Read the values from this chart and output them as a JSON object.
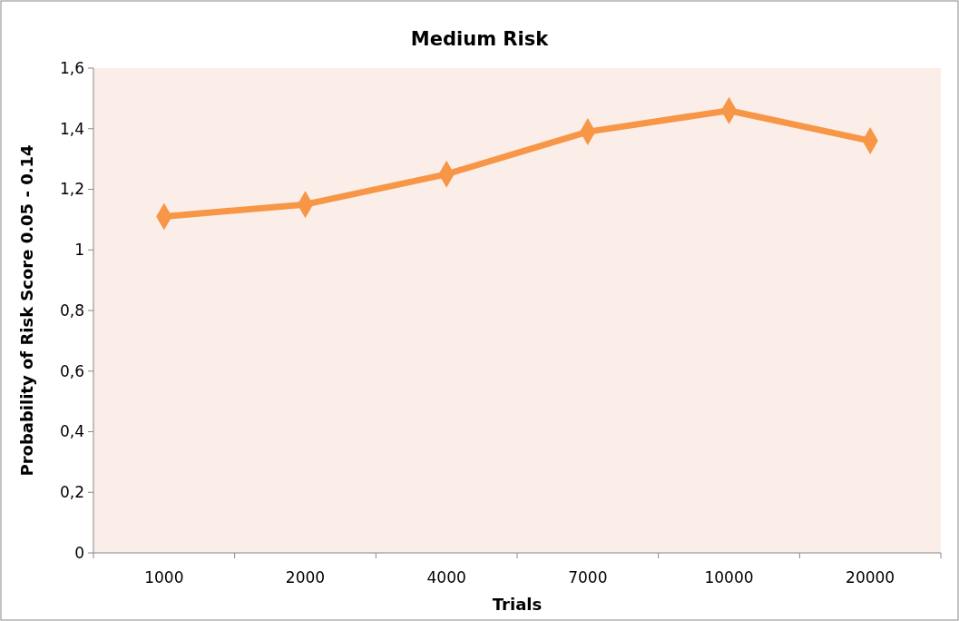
{
  "chart_data": {
    "type": "line",
    "title": "Medium Risk",
    "xlabel": "Trials",
    "ylabel": "Probability of Risk Score 0.05 - 0.14",
    "categories": [
      "1000",
      "2000",
      "4000",
      "7000",
      "10000",
      "20000"
    ],
    "series": [
      {
        "color": "#f79646",
        "values": [
          1.11,
          1.15,
          1.25,
          1.39,
          1.46,
          1.36
        ]
      }
    ],
    "ylim": [
      0,
      1.6
    ],
    "yticks": [
      0,
      {
        "value": 0.2,
        "label": "0,2"
      },
      {
        "value": 0.4,
        "label": "0,4"
      },
      {
        "value": 0.6,
        "label": "0,6"
      },
      {
        "value": 0.8,
        "label": "0,8"
      },
      1,
      {
        "value": 1.2,
        "label": "1,2"
      },
      {
        "value": 1.4,
        "label": "1,4"
      },
      {
        "value": 1.6,
        "label": "1,6"
      }
    ],
    "marker": "diamond",
    "line_style": "solid",
    "grid": false
  }
}
